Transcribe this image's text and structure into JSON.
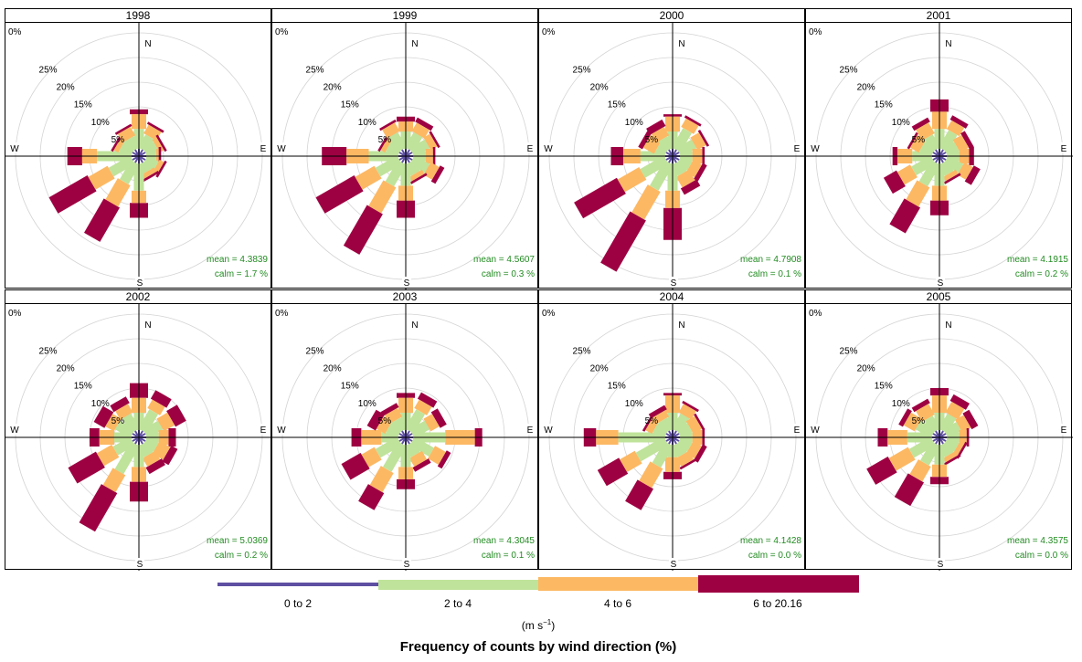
{
  "chart_data": {
    "type": "windrose",
    "title": "Frequency of counts by wind direction (%)",
    "units_text": "(m s",
    "units_exponent": "−1",
    "compass_labels": [
      "N",
      "E",
      "S",
      "W"
    ],
    "radial_ticks": [
      "0%",
      "5%",
      "10%",
      "15%",
      "20%",
      "25%"
    ],
    "radial_values": [
      0,
      5,
      10,
      15,
      20,
      25
    ],
    "speed_bins": [
      {
        "label": "0 to 2",
        "color": "#5e4fa2"
      },
      {
        "label": "2 to 4",
        "color": "#bfe39a"
      },
      {
        "label": "4 to 6",
        "color": "#fdb863"
      },
      {
        "label": "6 to 20.16",
        "color": "#9e0142"
      }
    ],
    "directions_deg": [
      0,
      30,
      60,
      90,
      120,
      150,
      180,
      210,
      240,
      270,
      300,
      330
    ],
    "panels": [
      {
        "year": "1998",
        "mean_label": "mean  =  4.3839",
        "calm_label": "calm =  1.7 %",
        "cum": [
          [
            1.5,
            5.5,
            8.5,
            9.5
          ],
          [
            1.5,
            4.5,
            6.5,
            7
          ],
          [
            1.5,
            4,
            5,
            5.5
          ],
          [
            1.5,
            3.5,
            4,
            4.5
          ],
          [
            1.5,
            4,
            5,
            5.5
          ],
          [
            1.5,
            3.5,
            4.5,
            5
          ],
          [
            1.5,
            7,
            9.5,
            12.5
          ],
          [
            1.5,
            6,
            11,
            19
          ],
          [
            1.5,
            6.5,
            11,
            20
          ],
          [
            1.5,
            8.5,
            11.5,
            14.5
          ],
          [
            1.5,
            4,
            5,
            5.5
          ],
          [
            1.5,
            4,
            6,
            6.5
          ]
        ]
      },
      {
        "year": "1999",
        "mean_label": "mean  =  4.5607",
        "calm_label": "calm =  0.3 %",
        "cum": [
          [
            1.5,
            5,
            7,
            8
          ],
          [
            1.5,
            5,
            7,
            8
          ],
          [
            1.5,
            5,
            6.5,
            7
          ],
          [
            1.5,
            4,
            5.5,
            6
          ],
          [
            1.5,
            5,
            7,
            8
          ],
          [
            1.5,
            4,
            5,
            5.5
          ],
          [
            1.5,
            6,
            9,
            12.5
          ],
          [
            1.5,
            6.5,
            12.5,
            22
          ],
          [
            1.5,
            6.5,
            11,
            20
          ],
          [
            1.5,
            7.5,
            12,
            17
          ],
          [
            1.5,
            4,
            5,
            5.5
          ],
          [
            1.5,
            5,
            7,
            7.5
          ]
        ]
      },
      {
        "year": "2000",
        "mean_label": "mean  =  4.7908",
        "calm_label": "calm =  0.1 %",
        "cum": [
          [
            1.5,
            5,
            8,
            8.5
          ],
          [
            1.5,
            6,
            8,
            8.5
          ],
          [
            1.5,
            5,
            7,
            7.5
          ],
          [
            1.5,
            4,
            6,
            6.5
          ],
          [
            1.5,
            4,
            6,
            7
          ],
          [
            1.5,
            4,
            6.5,
            8
          ],
          [
            1.5,
            7,
            10.5,
            17
          ],
          [
            1.5,
            7.5,
            14,
            26
          ],
          [
            1.5,
            7,
            12,
            22
          ],
          [
            1.5,
            6.5,
            10,
            12.5
          ],
          [
            1.5,
            3.5,
            6,
            7
          ],
          [
            1.5,
            4,
            6,
            7.5
          ]
        ]
      },
      {
        "year": "2001",
        "mean_label": "mean  =  4.1915",
        "calm_label": "calm =  0.2 %",
        "cum": [
          [
            1.5,
            5.5,
            9,
            11.5
          ],
          [
            1.5,
            5.5,
            7.5,
            8.5
          ],
          [
            1.5,
            4,
            6,
            7
          ],
          [
            1.5,
            4,
            6,
            7
          ],
          [
            1.5,
            5,
            7,
            8.5
          ],
          [
            1.5,
            4,
            5,
            5.5
          ],
          [
            1.5,
            6,
            9,
            12
          ],
          [
            1.5,
            6.5,
            11,
            17
          ],
          [
            1.5,
            6,
            9,
            12
          ],
          [
            1.5,
            5.5,
            8.5,
            9.5
          ],
          [
            1.5,
            4,
            6,
            6.5
          ],
          [
            1.5,
            4.5,
            7,
            8
          ]
        ]
      },
      {
        "year": "2002",
        "mean_label": "mean  =  5.0369",
        "calm_label": "calm =  0.2 %",
        "cum": [
          [
            1.5,
            5,
            8,
            11
          ],
          [
            1.5,
            6,
            8,
            10
          ],
          [
            1.5,
            5,
            7.5,
            10
          ],
          [
            1.5,
            4,
            6,
            7.5
          ],
          [
            1.5,
            4,
            6.5,
            8
          ],
          [
            1.5,
            4,
            6,
            7.5
          ],
          [
            1.5,
            6,
            9,
            13
          ],
          [
            1.5,
            8,
            12,
            21
          ],
          [
            1.5,
            5.5,
            9,
            15.5
          ],
          [
            1.5,
            5,
            8,
            10
          ],
          [
            1.5,
            5,
            7,
            9.5
          ],
          [
            1.5,
            5,
            7,
            8.5
          ]
        ]
      },
      {
        "year": "2003",
        "mean_label": "mean  =  4.3045",
        "calm_label": "calm =  0.1 %",
        "cum": [
          [
            1.5,
            5,
            8,
            9
          ],
          [
            1.5,
            6,
            8,
            9.5
          ],
          [
            1.5,
            5,
            7,
            8.5
          ],
          [
            1.5,
            8,
            14,
            15.5
          ],
          [
            1.5,
            6,
            8.5,
            9.5
          ],
          [
            1.5,
            4,
            6,
            7
          ],
          [
            1.5,
            6,
            8.5,
            10.5
          ],
          [
            1.5,
            7.5,
            12,
            16
          ],
          [
            1.5,
            6.5,
            9.5,
            14
          ],
          [
            1.5,
            5,
            9,
            11
          ],
          [
            1.5,
            4,
            6,
            8
          ],
          [
            1.5,
            4,
            6,
            7
          ]
        ]
      },
      {
        "year": "2004",
        "mean_label": "mean  =  4.1428",
        "calm_label": "calm =  0.0 %",
        "cum": [
          [
            1.5,
            5,
            8.5,
            9
          ],
          [
            1.5,
            5,
            7,
            7.5
          ],
          [
            1.5,
            4,
            6,
            6.5
          ],
          [
            1.5,
            4,
            6,
            6.5
          ],
          [
            1.5,
            4,
            6,
            7
          ],
          [
            1.5,
            4,
            6,
            6.5
          ],
          [
            1.5,
            4,
            7,
            8.5
          ],
          [
            1.5,
            6.5,
            11,
            16
          ],
          [
            1.5,
            8,
            11.5,
            16.5
          ],
          [
            1.5,
            11,
            15.5,
            18
          ],
          [
            1.5,
            4,
            5.5,
            6
          ],
          [
            1.5,
            4,
            5.5,
            6.5
          ]
        ]
      },
      {
        "year": "2005",
        "mean_label": "mean  =  4.3575",
        "calm_label": "calm =  0.0 %",
        "cum": [
          [
            1.5,
            5,
            8.5,
            10
          ],
          [
            1.5,
            5,
            7.5,
            9
          ],
          [
            1.5,
            4.5,
            6.5,
            8
          ],
          [
            1.5,
            4,
            5.5,
            6
          ],
          [
            1.5,
            4,
            5,
            5.5
          ],
          [
            1.5,
            4,
            5,
            5.5
          ],
          [
            1.5,
            5.5,
            8,
            9.5
          ],
          [
            1.5,
            6,
            9.5,
            15
          ],
          [
            1.5,
            6.5,
            11,
            16
          ],
          [
            1.5,
            6.5,
            10.5,
            12.5
          ],
          [
            1.5,
            5,
            7.5,
            8.5
          ],
          [
            1.5,
            4.5,
            7,
            8
          ]
        ]
      }
    ]
  }
}
